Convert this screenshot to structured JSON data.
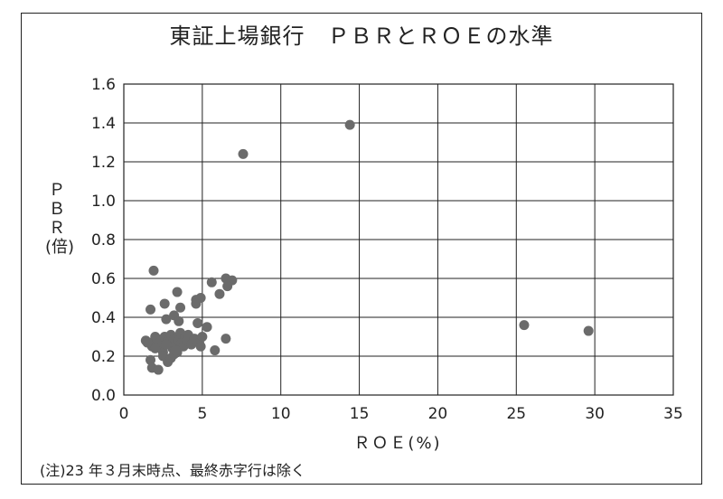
{
  "chart_data": {
    "type": "scatter",
    "title": "東証上場銀行　ＰＢＲとＲＯＥの水準",
    "xlabel": "ＲＯＥ(%)",
    "ylabel_lines": [
      "Ｐ",
      "Ｂ",
      "Ｒ",
      "(倍)"
    ],
    "note": "(注)23 年３月末時点、最終赤字行は除く",
    "xlim": [
      0,
      35
    ],
    "ylim": [
      0.0,
      1.6
    ],
    "xticks": [
      "0",
      "5",
      "10",
      "15",
      "20",
      "25",
      "30",
      "35"
    ],
    "yticks": [
      "0.0",
      "0.2",
      "0.4",
      "0.6",
      "0.8",
      "1.0",
      "1.2",
      "1.4",
      "1.6"
    ],
    "grid": true,
    "marker_color": "#6b6b6b",
    "points": [
      [
        7.6,
        1.24
      ],
      [
        14.4,
        1.39
      ],
      [
        25.5,
        0.36
      ],
      [
        29.6,
        0.33
      ],
      [
        1.9,
        0.64
      ],
      [
        3.4,
        0.53
      ],
      [
        1.7,
        0.44
      ],
      [
        2.6,
        0.47
      ],
      [
        3.6,
        0.45
      ],
      [
        2.7,
        0.39
      ],
      [
        3.2,
        0.41
      ],
      [
        3.5,
        0.38
      ],
      [
        4.6,
        0.49
      ],
      [
        4.9,
        0.5
      ],
      [
        4.6,
        0.47
      ],
      [
        4.7,
        0.37
      ],
      [
        5.3,
        0.35
      ],
      [
        5.6,
        0.58
      ],
      [
        6.5,
        0.6
      ],
      [
        6.9,
        0.59
      ],
      [
        6.6,
        0.56
      ],
      [
        6.1,
        0.52
      ],
      [
        6.5,
        0.29
      ],
      [
        5.8,
        0.23
      ],
      [
        1.4,
        0.28
      ],
      [
        1.6,
        0.27
      ],
      [
        1.8,
        0.25
      ],
      [
        2.0,
        0.3
      ],
      [
        2.1,
        0.29
      ],
      [
        2.3,
        0.27
      ],
      [
        2.4,
        0.25
      ],
      [
        2.5,
        0.22
      ],
      [
        2.6,
        0.3
      ],
      [
        2.8,
        0.28
      ],
      [
        2.9,
        0.26
      ],
      [
        3.0,
        0.31
      ],
      [
        3.1,
        0.24
      ],
      [
        3.2,
        0.29
      ],
      [
        3.3,
        0.26
      ],
      [
        3.4,
        0.22
      ],
      [
        3.5,
        0.28
      ],
      [
        3.6,
        0.32
      ],
      [
        3.7,
        0.27
      ],
      [
        3.8,
        0.25
      ],
      [
        3.9,
        0.3
      ],
      [
        4.0,
        0.28
      ],
      [
        4.1,
        0.31
      ],
      [
        4.3,
        0.26
      ],
      [
        4.5,
        0.29
      ],
      [
        4.8,
        0.27
      ],
      [
        4.9,
        0.25
      ],
      [
        5.0,
        0.3
      ],
      [
        1.7,
        0.18
      ],
      [
        1.8,
        0.14
      ],
      [
        2.2,
        0.13
      ],
      [
        2.5,
        0.2
      ],
      [
        2.8,
        0.17
      ],
      [
        3.0,
        0.19
      ],
      [
        3.2,
        0.21
      ],
      [
        3.3,
        0.23
      ],
      [
        2.0,
        0.24
      ],
      [
        1.5,
        0.27
      ],
      [
        2.7,
        0.26
      ]
    ]
  }
}
